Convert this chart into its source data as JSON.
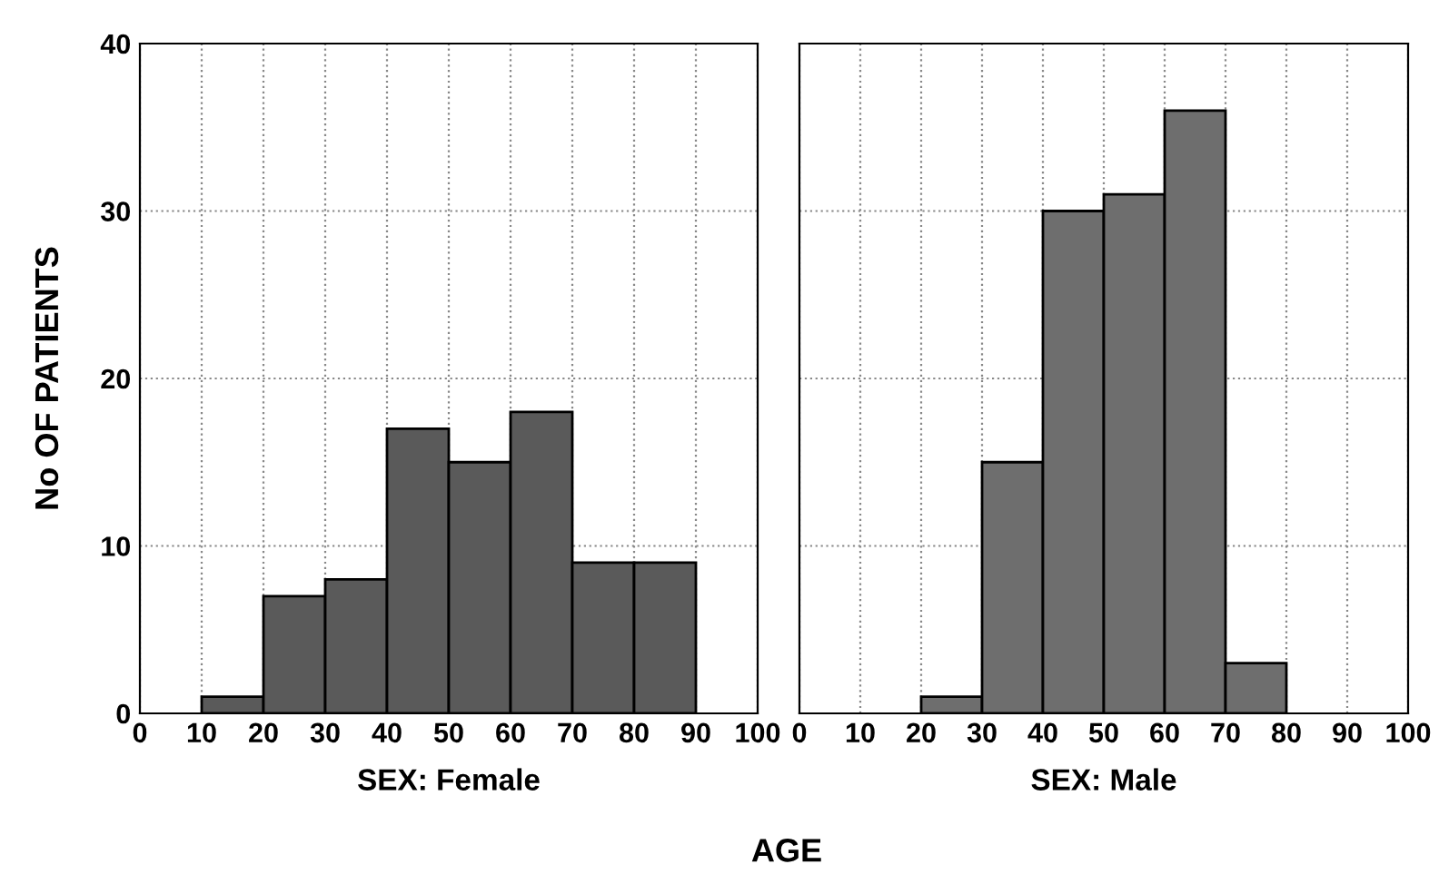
{
  "chart_data": [
    {
      "type": "histogram",
      "bins": [
        10,
        20,
        30,
        40,
        50,
        60,
        70,
        80,
        90
      ],
      "values": [
        1,
        7,
        8,
        17,
        15,
        18,
        9,
        9
      ],
      "color": "#5a5a5a",
      "xlim": [
        0,
        100
      ],
      "ylim": [
        0,
        40
      ],
      "xticks": [
        0,
        10,
        20,
        30,
        40,
        50,
        60,
        70,
        80,
        90,
        100
      ],
      "yticks": [
        0,
        10,
        20,
        30,
        40
      ],
      "grid": true,
      "xlabel": "SEX: Female",
      "ylabel": "No OF PATIENTS",
      "annotations": [
        "AGE"
      ]
    },
    {
      "type": "histogram",
      "bins": [
        20,
        30,
        40,
        50,
        60,
        70,
        80
      ],
      "values": [
        1,
        15,
        30,
        31,
        36,
        3
      ],
      "color": "#6e6e6e",
      "xlim": [
        0,
        100
      ],
      "ylim": [
        0,
        40
      ],
      "xticks": [
        0,
        10,
        20,
        30,
        40,
        50,
        60,
        70,
        80,
        90,
        100
      ],
      "yticks": [
        0,
        10,
        20,
        30,
        40
      ],
      "grid": true,
      "xlabel": "SEX: Male",
      "tick_labels": "x"
    }
  ]
}
